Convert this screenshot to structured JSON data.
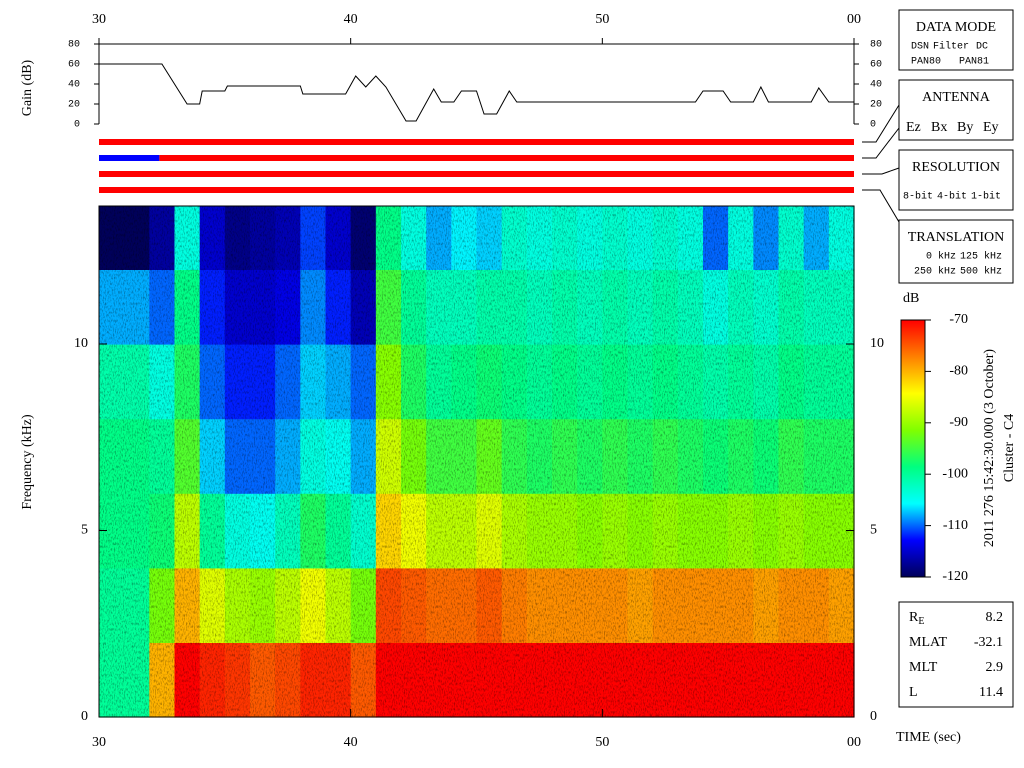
{
  "chart_data": [
    {
      "type": "line",
      "ylabel": "Gain (dB)",
      "x": [
        30,
        32.5,
        33.5,
        34.0,
        34.1,
        35.0,
        35.1,
        38.0,
        38.1,
        39.8,
        40.2,
        40.6,
        41.0,
        41.4,
        42.2,
        42.6,
        43.3,
        43.6,
        44.1,
        44.4,
        45.0,
        45.3,
        45.8,
        46.3,
        46.6,
        53.7,
        54.0,
        54.8,
        55.1,
        56.0,
        56.3,
        56.6,
        58.3,
        58.6,
        59.0,
        60
      ],
      "series": [
        {
          "color": "#000000",
          "values": [
            60,
            60,
            20,
            20,
            33,
            33,
            38,
            38,
            30,
            30,
            48,
            37,
            48,
            37,
            3,
            3,
            35,
            22,
            22,
            33,
            33,
            10,
            10,
            33,
            22,
            22,
            33,
            33,
            22,
            22,
            37,
            22,
            22,
            36,
            22,
            22
          ]
        }
      ],
      "xlim": [
        30,
        60
      ],
      "xticks": [
        30,
        40,
        50,
        {
          "value": 60,
          "label": "00"
        }
      ],
      "ylim": [
        0,
        80
      ],
      "yticks": [
        0,
        20,
        40,
        60,
        80
      ]
    },
    {
      "type": "timeline",
      "tracks": [
        [
          {
            "start": 30,
            "end": 60,
            "color": "#ff0000"
          }
        ],
        [
          {
            "start": 30,
            "end": 32.4,
            "color": "#0000ff"
          },
          {
            "start": 32.4,
            "end": 60,
            "color": "#ff0000"
          }
        ],
        [
          {
            "start": 30,
            "end": 60,
            "color": "#ff0000"
          }
        ],
        [
          {
            "start": 30,
            "end": 60,
            "color": "#ff0000"
          }
        ]
      ]
    },
    {
      "type": "heatmap",
      "xlabel": "TIME (sec)",
      "ylabel": "Frequency (kHz)",
      "xlim": [
        30,
        60
      ],
      "xticks": [
        30,
        40,
        50,
        {
          "value": 60,
          "label": "00"
        }
      ],
      "ylim": [
        0,
        13.7
      ],
      "yticks": [
        0,
        5,
        10
      ],
      "xbins": [
        30,
        31,
        32,
        33,
        34,
        35,
        36,
        37,
        38,
        39,
        40,
        41,
        42,
        43,
        44,
        45,
        46,
        47,
        48,
        49,
        50,
        51,
        52,
        53,
        54,
        55,
        56,
        57,
        58,
        59,
        60
      ],
      "ybins": [
        0,
        2,
        4,
        6,
        8,
        10,
        12,
        13.7
      ],
      "values": [
        [
          -100,
          -100,
          -99,
          -99,
          -101,
          -108,
          -120
        ],
        [
          -100,
          -100,
          -99,
          -99,
          -101,
          -108,
          -120
        ],
        [
          -80,
          -92,
          -98,
          -100,
          -104,
          -110,
          -117
        ],
        [
          -70,
          -80,
          -88,
          -94,
          -97,
          -99,
          -104
        ],
        [
          -72,
          -86,
          -100,
          -107,
          -110,
          -112,
          -115
        ],
        [
          -73,
          -89,
          -104,
          -110,
          -112,
          -115,
          -118
        ],
        [
          -75,
          -90,
          -105,
          -110,
          -112,
          -115,
          -117
        ],
        [
          -74,
          -88,
          -102,
          -108,
          -110,
          -114,
          -116
        ],
        [
          -72,
          -85,
          -97,
          -104,
          -107,
          -109,
          -111
        ],
        [
          -72,
          -88,
          -100,
          -105,
          -108,
          -112,
          -115
        ],
        [
          -75,
          -92,
          -103,
          -108,
          -110,
          -116,
          -119
        ],
        [
          -70,
          -74,
          -82,
          -87,
          -91,
          -95,
          -99
        ],
        [
          -70,
          -75,
          -85,
          -92,
          -97,
          -100,
          -104
        ],
        [
          -70,
          -76,
          -88,
          -95,
          -100,
          -102,
          -108
        ],
        [
          -70,
          -76,
          -88,
          -95,
          -99,
          -102,
          -106
        ],
        [
          -70,
          -75,
          -86,
          -93,
          -98,
          -101,
          -107
        ],
        [
          -70,
          -77,
          -89,
          -96,
          -99,
          -101,
          -103
        ],
        [
          -70,
          -78,
          -90,
          -97,
          -100,
          -102,
          -104
        ],
        [
          -70,
          -78,
          -90,
          -96,
          -99,
          -101,
          -103
        ],
        [
          -70,
          -78,
          -91,
          -97,
          -100,
          -102,
          -104
        ],
        [
          -70,
          -78,
          -90,
          -96,
          -99,
          -101,
          -103
        ],
        [
          -70,
          -79,
          -91,
          -97,
          -100,
          -102,
          -104
        ],
        [
          -70,
          -78,
          -90,
          -96,
          -99,
          -101,
          -103
        ],
        [
          -70,
          -78,
          -91,
          -97,
          -100,
          -102,
          -104
        ],
        [
          -70,
          -78,
          -91,
          -98,
          -101,
          -104,
          -110
        ],
        [
          -70,
          -78,
          -90,
          -97,
          -100,
          -102,
          -104
        ],
        [
          -70,
          -79,
          -91,
          -98,
          -101,
          -103,
          -109
        ],
        [
          -70,
          -78,
          -90,
          -96,
          -99,
          -101,
          -103
        ],
        [
          -70,
          -78,
          -91,
          -97,
          -100,
          -102,
          -108
        ],
        [
          -70,
          -79,
          -91,
          -97,
          -100,
          -102,
          -104
        ]
      ],
      "colorbar": {
        "label": "dB",
        "lim": [
          -120,
          -70
        ],
        "ticks": [
          -70,
          -80,
          -90,
          -100,
          -110,
          -120
        ],
        "colors": [
          "#00005a",
          "#0000ff",
          "#00ffff",
          "#00ff80",
          "#80ff00",
          "#ffff00",
          "#ff8000",
          "#ff0000"
        ]
      }
    }
  ],
  "panels": {
    "data_mode": {
      "title": "DATA MODE",
      "items": [
        {
          "text": "DSN",
          "color": "#ff0000"
        },
        {
          "text": "Filter",
          "color": "#00c000"
        },
        {
          "text": "DC",
          "color": "#0000ff"
        },
        {
          "text": "PAN80",
          "color": "#000000"
        },
        {
          "text": "PAN81",
          "color": "#00c0c0"
        }
      ]
    },
    "antenna": {
      "title": "ANTENNA",
      "items": [
        {
          "text": "Ez",
          "color": "#ff0000"
        },
        {
          "text": "Bx",
          "color": "#00c000"
        },
        {
          "text": "By",
          "color": "#0000ff"
        },
        {
          "text": "Ey",
          "color": "#000000"
        }
      ]
    },
    "resolution": {
      "title": "RESOLUTION",
      "items": [
        {
          "text": "8-bit",
          "color": "#ff0000"
        },
        {
          "text": "4-bit",
          "color": "#00c000"
        },
        {
          "text": "1-bit",
          "color": "#0000ff"
        }
      ]
    },
    "translation": {
      "title": "TRANSLATION",
      "items": [
        {
          "text": "0 kHz",
          "color": "#ff0000"
        },
        {
          "text": "125 kHz",
          "color": "#00c000"
        },
        {
          "text": "250 kHz",
          "color": "#0000ff"
        },
        {
          "text": "500 kHz",
          "color": "#000000"
        }
      ]
    }
  },
  "side_text": [
    "2011 276 15:42:30.000 (3 October)",
    "Cluster - C4"
  ],
  "info": [
    {
      "label": "R",
      "sub": "E",
      "value": 8.2
    },
    {
      "label": "MLAT",
      "value": -32.1
    },
    {
      "label": "MLT",
      "value": 2.9
    },
    {
      "label": "L",
      "value": 11.4
    }
  ]
}
